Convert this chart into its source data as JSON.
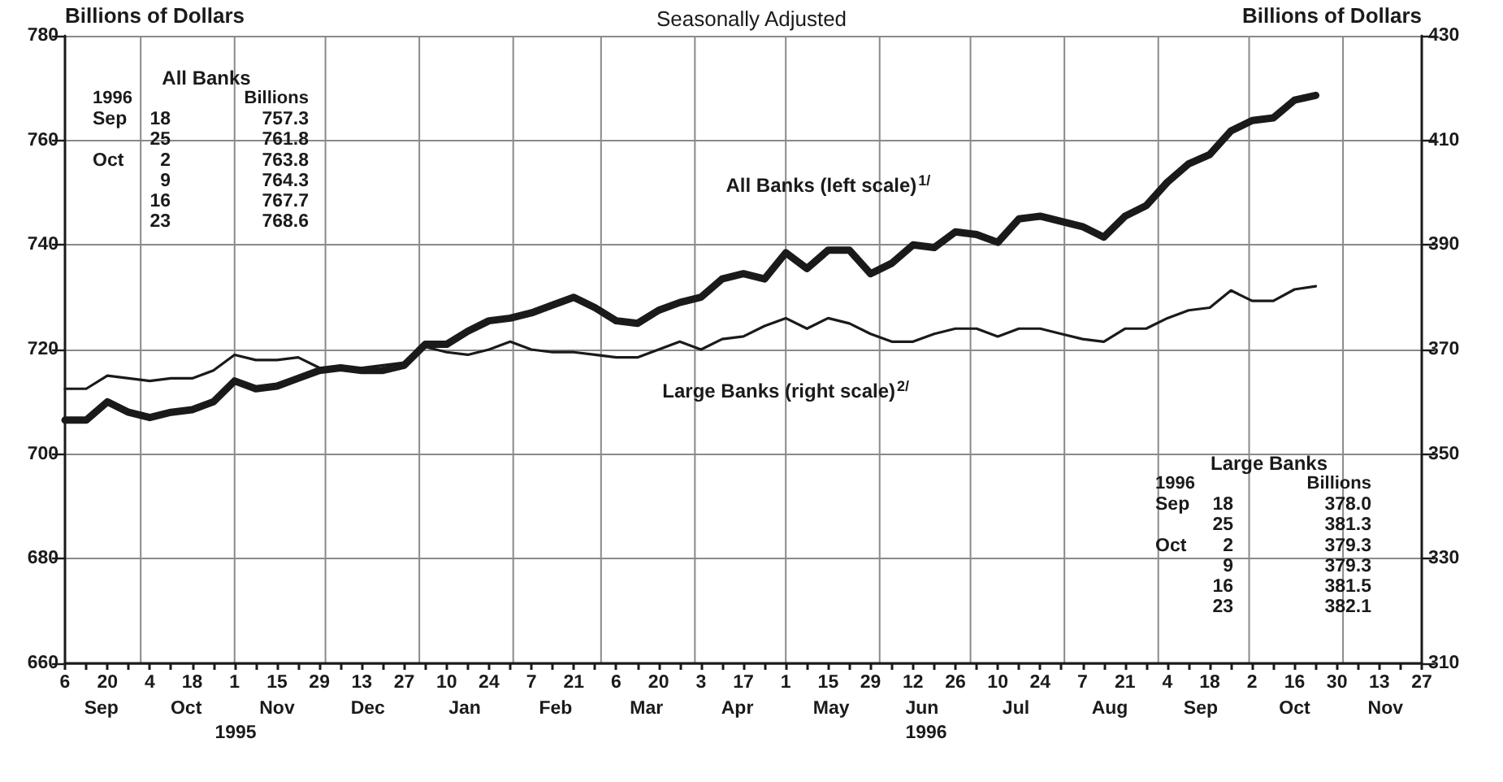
{
  "chart_data": {
    "type": "line",
    "title": "Seasonally Adjusted",
    "ylabel": "Billions of Dollars",
    "y2label": "Billions of Dollars",
    "x": [
      "1995-09-06",
      "1995-09-13",
      "1995-09-20",
      "1995-09-27",
      "1995-10-04",
      "1995-10-11",
      "1995-10-18",
      "1995-10-25",
      "1995-11-01",
      "1995-11-08",
      "1995-11-15",
      "1995-11-22",
      "1995-11-29",
      "1995-12-06",
      "1995-12-13",
      "1995-12-20",
      "1995-12-27",
      "1996-01-03",
      "1996-01-10",
      "1996-01-17",
      "1996-01-24",
      "1996-01-31",
      "1996-02-07",
      "1996-02-14",
      "1996-02-21",
      "1996-02-28",
      "1996-03-06",
      "1996-03-13",
      "1996-03-20",
      "1996-03-27",
      "1996-04-03",
      "1996-04-10",
      "1996-04-17",
      "1996-04-24",
      "1996-05-01",
      "1996-05-08",
      "1996-05-15",
      "1996-05-22",
      "1996-05-29",
      "1996-06-05",
      "1996-06-12",
      "1996-06-19",
      "1996-06-26",
      "1996-07-03",
      "1996-07-10",
      "1996-07-17",
      "1996-07-24",
      "1996-07-31",
      "1996-08-07",
      "1996-08-14",
      "1996-08-21",
      "1996-08-28",
      "1996-09-04",
      "1996-09-11",
      "1996-09-18",
      "1996-09-25",
      "1996-10-02",
      "1996-10-09",
      "1996-10-16",
      "1996-10-23"
    ],
    "series": [
      {
        "name": "All Banks (left scale)$^{1/}$",
        "color": "#1a1a1a",
        "values": [
          706.5,
          706.5,
          710,
          708,
          707,
          708,
          708.5,
          710,
          714,
          712.5,
          713,
          714.5,
          716,
          716.5,
          716,
          716,
          717,
          721,
          721,
          723.5,
          725.5,
          726,
          727,
          728.5,
          730,
          728,
          725.5,
          725,
          727.5,
          729,
          730,
          733.5,
          734.5,
          733.5,
          738.5,
          735.5,
          739,
          739,
          734.5,
          736.5,
          740,
          739.5,
          742.5,
          742,
          740.5,
          745,
          745.5,
          744.5,
          743.5,
          741.5,
          745.5,
          747.5,
          752,
          755.5,
          757.3,
          761.8,
          763.8,
          764.3,
          767.7,
          768.6
        ]
      },
      {
        "name": "Large Banks (right scale)$^{2/}$",
        "color": "#1a1a1a",
        "axis": "y2",
        "values": [
          362.5,
          362.5,
          365,
          364.5,
          364,
          364.5,
          364.5,
          366,
          369,
          368,
          368,
          368.5,
          366.5,
          366.5,
          366.5,
          367,
          367.5,
          370.5,
          369.5,
          369,
          370,
          371.5,
          370,
          369.5,
          369.5,
          369,
          368.5,
          368.5,
          370,
          371.5,
          370,
          372,
          372.5,
          374.5,
          376,
          374,
          376,
          375,
          373,
          371.5,
          371.5,
          373,
          374,
          374,
          372.5,
          374,
          374,
          373,
          372,
          371.5,
          374,
          374,
          376,
          377.5,
          378.0,
          381.3,
          379.3,
          379.3,
          381.5,
          382.1
        ]
      }
    ],
    "xlim": [
      "1995-09-06",
      "1996-11-27"
    ],
    "xticks": [
      {
        "value": "1995-09-06",
        "label": "6"
      },
      {
        "value": "1995-09-13",
        "label": null
      },
      {
        "value": "1995-09-20",
        "label": "20"
      },
      {
        "value": "1995-09-27",
        "label": null
      },
      {
        "value": "1995-10-04",
        "label": "4"
      },
      {
        "value": "1995-10-11",
        "label": null
      },
      {
        "value": "1995-10-18",
        "label": "18"
      },
      {
        "value": "1995-10-25",
        "label": null
      },
      {
        "value": "1995-11-01",
        "label": "1"
      },
      {
        "value": "1995-11-08",
        "label": null
      },
      {
        "value": "1995-11-15",
        "label": "15"
      },
      {
        "value": "1995-11-22",
        "label": null
      },
      {
        "value": "1995-11-29",
        "label": "29"
      },
      {
        "value": "1995-12-06",
        "label": null
      },
      {
        "value": "1995-12-13",
        "label": "13"
      },
      {
        "value": "1995-12-20",
        "label": null
      },
      {
        "value": "1995-12-27",
        "label": "27"
      },
      {
        "value": "1996-01-03",
        "label": null
      },
      {
        "value": "1996-01-10",
        "label": "10"
      },
      {
        "value": "1996-01-17",
        "label": null
      },
      {
        "value": "1996-01-24",
        "label": "24"
      },
      {
        "value": "1996-01-31",
        "label": null
      },
      {
        "value": "1996-02-07",
        "label": "7"
      },
      {
        "value": "1996-02-14",
        "label": null
      },
      {
        "value": "1996-02-21",
        "label": "21"
      },
      {
        "value": "1996-02-28",
        "label": null
      },
      {
        "value": "1996-03-06",
        "label": "6"
      },
      {
        "value": "1996-03-13",
        "label": null
      },
      {
        "value": "1996-03-20",
        "label": "20"
      },
      {
        "value": "1996-03-27",
        "label": null
      },
      {
        "value": "1996-04-03",
        "label": "3"
      },
      {
        "value": "1996-04-10",
        "label": null
      },
      {
        "value": "1996-04-17",
        "label": "17"
      },
      {
        "value": "1996-04-24",
        "label": null
      },
      {
        "value": "1996-05-01",
        "label": "1"
      },
      {
        "value": "1996-05-08",
        "label": null
      },
      {
        "value": "1996-05-15",
        "label": "15"
      },
      {
        "value": "1996-05-22",
        "label": null
      },
      {
        "value": "1996-05-29",
        "label": "29"
      },
      {
        "value": "1996-06-05",
        "label": null
      },
      {
        "value": "1996-06-12",
        "label": "12"
      },
      {
        "value": "1996-06-19",
        "label": null
      },
      {
        "value": "1996-06-26",
        "label": "26"
      },
      {
        "value": "1996-07-03",
        "label": null
      },
      {
        "value": "1996-07-10",
        "label": "10"
      },
      {
        "value": "1996-07-17",
        "label": null
      },
      {
        "value": "1996-07-24",
        "label": "24"
      },
      {
        "value": "1996-07-31",
        "label": null
      },
      {
        "value": "1996-08-07",
        "label": "7"
      },
      {
        "value": "1996-08-14",
        "label": null
      },
      {
        "value": "1996-08-21",
        "label": "21"
      },
      {
        "value": "1996-08-28",
        "label": null
      },
      {
        "value": "1996-09-04",
        "label": "4"
      },
      {
        "value": "1996-09-11",
        "label": null
      },
      {
        "value": "1996-09-18",
        "label": "18"
      },
      {
        "value": "1996-09-25",
        "label": null
      },
      {
        "value": "1996-10-02",
        "label": "2"
      },
      {
        "value": "1996-10-09",
        "label": null
      },
      {
        "value": "1996-10-16",
        "label": "16"
      },
      {
        "value": "1996-10-23",
        "label": null
      },
      {
        "value": "1996-10-30",
        "label": "30"
      },
      {
        "value": "1996-11-06",
        "label": null
      },
      {
        "value": "1996-11-13",
        "label": "13"
      },
      {
        "value": "1996-11-20",
        "label": null
      },
      {
        "value": "1996-11-27",
        "label": "27"
      }
    ],
    "x2lim": [
      "1995-09-06",
      "1996-11-27"
    ],
    "x2ticks": [
      {
        "value": "1995-09-18",
        "label": "Sep"
      },
      {
        "value": "1995-10-16",
        "label": "Oct"
      },
      {
        "value": "1995-11-15",
        "label": "Nov"
      },
      {
        "value": "1995-12-15",
        "label": "Dec"
      },
      {
        "value": "1996-01-16",
        "label": "Jan"
      },
      {
        "value": "1996-02-15",
        "label": "Feb"
      },
      {
        "value": "1996-03-16",
        "label": "Mar"
      },
      {
        "value": "1996-04-15",
        "label": "Apr"
      },
      {
        "value": "1996-05-16",
        "label": "May"
      },
      {
        "value": "1996-06-15",
        "label": "Jun"
      },
      {
        "value": "1996-07-16",
        "label": "Jul"
      },
      {
        "value": "1996-08-16",
        "label": "Aug"
      },
      {
        "value": "1996-09-15",
        "label": "Sep"
      },
      {
        "value": "1996-10-16",
        "label": "Oct"
      },
      {
        "value": "1996-11-15",
        "label": "Nov"
      }
    ],
    "ylim": [
      660,
      780
    ],
    "yticks": [
      660,
      680,
      700,
      720,
      740,
      760,
      780
    ],
    "y2lim": [
      310,
      430
    ],
    "y2ticks": [
      310,
      330,
      350,
      370,
      390,
      410,
      430
    ],
    "annotations": [
      "All Banks\n1996\t\tBillions\nSep\t18\t757.3\n\t25\t761.8\nOct\t2\t763.8\n\t9\t764.3\n\t16\t767.7\n\t23\t768.6",
      "Large Banks\n1996\t\tBillions\nSep\t18\t378.0\n\t25\t381.3\nOct\t2\t379.3\n\t9\t379.3\n\t16\t381.5\n\t23\t382.1",
      "1995",
      "1996"
    ],
    "grid": true,
    "marker": "none",
    "line_style": "solid"
  }
}
